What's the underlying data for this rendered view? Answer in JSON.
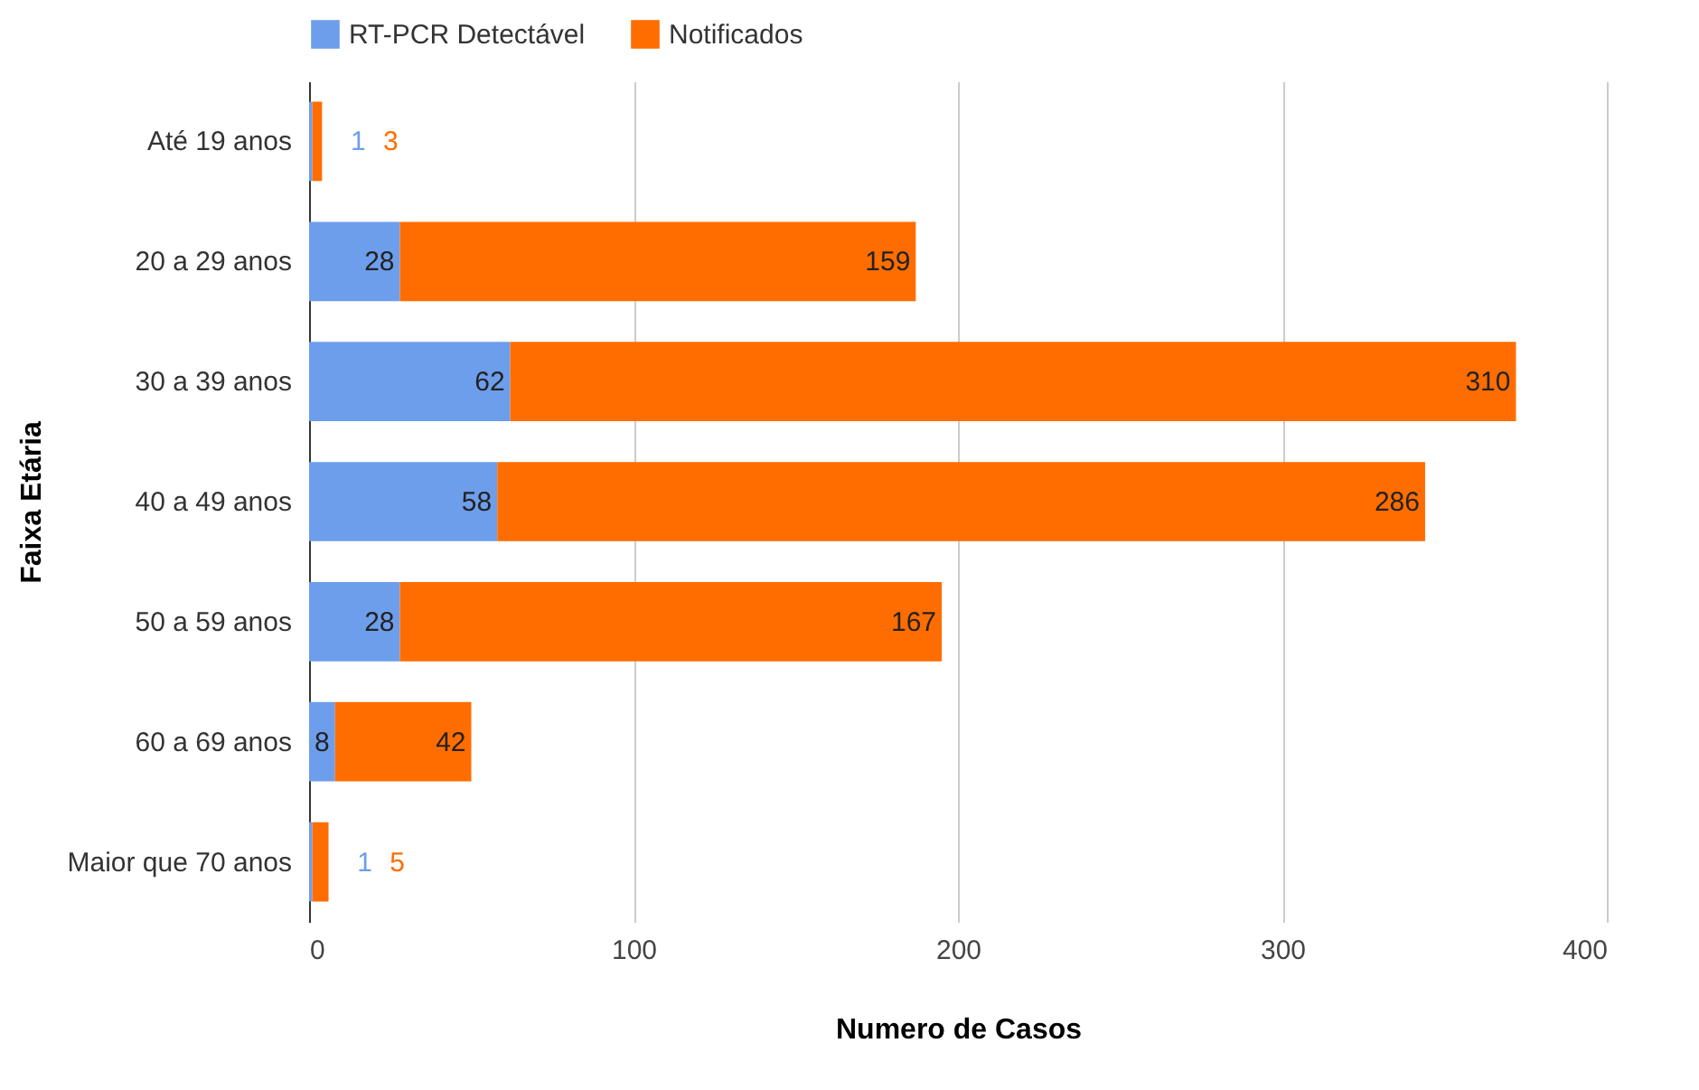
{
  "chart_data": {
    "type": "bar",
    "orientation": "horizontal",
    "stacked": true,
    "xlabel": "Numero de Casos",
    "ylabel": "Faixa Etária",
    "categories": [
      "Até 19 anos",
      "20 a 29 anos",
      "30 a 39 anos",
      "40 a 49 anos",
      "50 a 59 anos",
      "60 a 69 anos",
      "Maior que 70 anos"
    ],
    "series": [
      {
        "name": "RT-PCR Detectável",
        "color": "#6d9eeb",
        "values": [
          1,
          28,
          62,
          58,
          28,
          8,
          1
        ]
      },
      {
        "name": "Notificados",
        "color": "#ff6d01",
        "values": [
          3,
          159,
          310,
          286,
          167,
          42,
          5
        ]
      }
    ],
    "xlim": [
      0,
      400
    ],
    "xticks": [
      0,
      100,
      200,
      300,
      400
    ],
    "grid": "x",
    "legend": "top",
    "data_labels": true
  }
}
